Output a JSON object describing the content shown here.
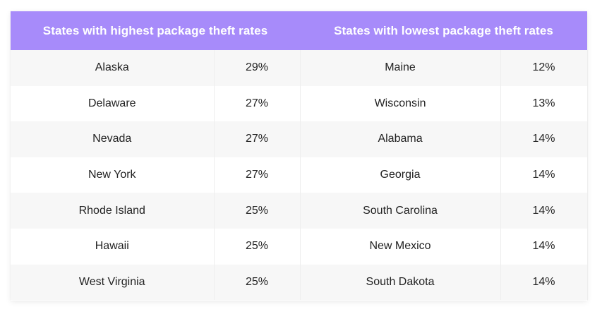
{
  "table": {
    "headers": {
      "highest": "States with highest package theft rates",
      "lowest": "States with lowest package theft rates"
    },
    "rows": [
      {
        "high_state": "Alaska",
        "high_rate": "29%",
        "low_state": "Maine",
        "low_rate": "12%"
      },
      {
        "high_state": "Delaware",
        "high_rate": "27%",
        "low_state": "Wisconsin",
        "low_rate": "13%"
      },
      {
        "high_state": "Nevada",
        "high_rate": "27%",
        "low_state": "Alabama",
        "low_rate": "14%"
      },
      {
        "high_state": "New York",
        "high_rate": "27%",
        "low_state": "Georgia",
        "low_rate": "14%"
      },
      {
        "high_state": "Rhode Island",
        "high_rate": "25%",
        "low_state": "South Carolina",
        "low_rate": "14%"
      },
      {
        "high_state": "Hawaii",
        "high_rate": "25%",
        "low_state": "New Mexico",
        "low_rate": "14%"
      },
      {
        "high_state": "West Virginia",
        "high_rate": "25%",
        "low_state": "South Dakota",
        "low_rate": "14%"
      }
    ]
  },
  "colors": {
    "header_bg": "#a78bfa",
    "header_text": "#ffffff",
    "row_odd": "#f7f7f7",
    "row_even": "#ffffff"
  }
}
